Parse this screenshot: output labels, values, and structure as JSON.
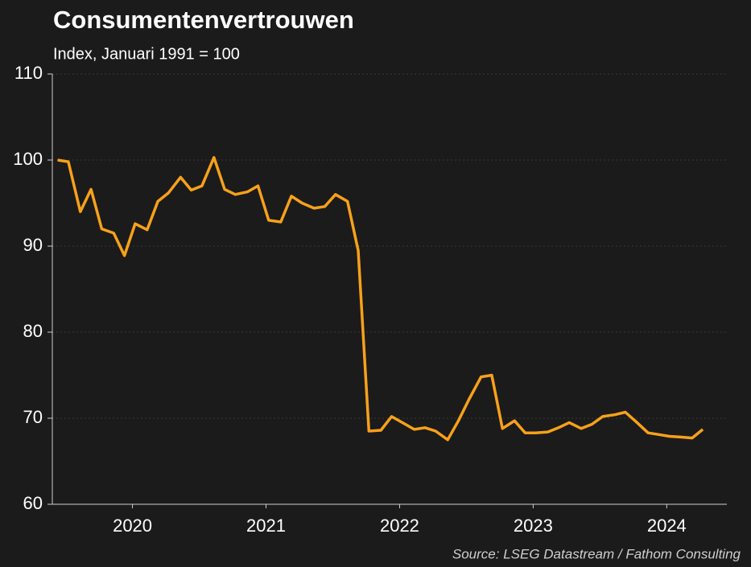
{
  "chart_data": {
    "type": "line",
    "title": "Consumentenvertrouwen",
    "subtitle": "Index, Januari 1991 = 100",
    "source": "Source: LSEG Datastream / Fathom Consulting",
    "x": [
      2019.94,
      2020.02,
      2020.11,
      2020.19,
      2020.27,
      2020.36,
      2020.44,
      2020.52,
      2020.61,
      2020.69,
      2020.77,
      2020.86,
      2020.94,
      2021.02,
      2021.11,
      2021.19,
      2021.27,
      2021.36,
      2021.44,
      2021.52,
      2021.61,
      2021.69,
      2021.77,
      2021.86,
      2021.94,
      2022.02,
      2022.11,
      2022.19,
      2022.27,
      2022.36,
      2022.44,
      2022.52,
      2022.61,
      2022.69,
      2022.77,
      2022.86,
      2022.94,
      2023.02,
      2023.11,
      2023.19,
      2023.27,
      2023.36,
      2023.44,
      2023.52,
      2023.61,
      2023.69,
      2023.77,
      2023.86,
      2023.94,
      2024.02,
      2024.11,
      2024.19,
      2024.27,
      2024.36,
      2024.44,
      2024.52,
      2024.61,
      2024.69,
      2024.77
    ],
    "series": [
      {
        "name": "Consumentenvertrouwen",
        "color": "#f7a11a",
        "values": [
          100.0,
          99.8,
          94.0,
          96.6,
          92.0,
          91.5,
          88.9,
          92.6,
          91.9,
          95.2,
          96.2,
          98.0,
          96.5,
          97.0,
          100.3,
          96.6,
          96.0,
          96.3,
          97.0,
          93.0,
          92.8,
          95.8,
          95.0,
          94.4,
          94.6,
          96.0,
          95.2,
          89.5,
          68.5,
          68.6,
          70.2,
          69.5,
          68.7,
          68.9,
          68.5,
          67.5,
          69.7,
          72.2,
          74.8,
          75.0,
          68.8,
          69.7,
          68.3,
          68.3,
          68.4,
          68.9,
          69.5,
          68.8,
          69.3,
          70.2,
          70.4,
          70.7,
          69.6,
          68.3,
          68.1,
          67.9,
          67.8,
          67.7,
          68.7
        ]
      }
    ],
    "xlim": [
      2019.9,
      2024.95
    ],
    "xticks": [
      {
        "value": 2020.5,
        "label": "2020"
      },
      {
        "value": 2021.5,
        "label": "2021"
      },
      {
        "value": 2022.5,
        "label": "2022"
      },
      {
        "value": 2023.5,
        "label": "2023"
      },
      {
        "value": 2024.5,
        "label": "2024"
      }
    ],
    "ylim": [
      60,
      110
    ],
    "yticks": [
      60,
      70,
      80,
      90,
      100,
      110
    ],
    "grid": true
  }
}
